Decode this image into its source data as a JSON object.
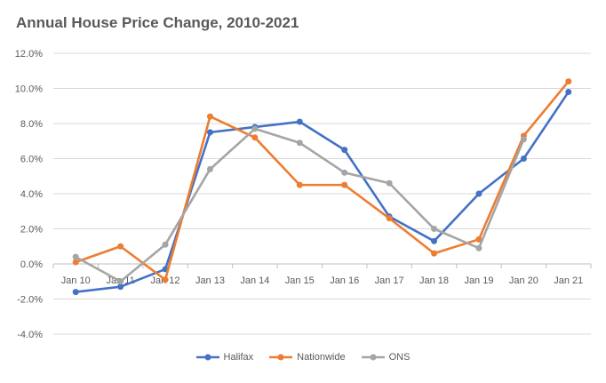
{
  "chart_data": {
    "type": "line",
    "title": "Annual House Price Change, 2010-2021",
    "xlabel": "",
    "ylabel": "",
    "categories": [
      "Jan 10",
      "Jan 11",
      "Jan 12",
      "Jan 13",
      "Jan 14",
      "Jan 15",
      "Jan 16",
      "Jan 17",
      "Jan 18",
      "Jan 19",
      "Jan 20",
      "Jan 21"
    ],
    "ylim": [
      -4,
      12
    ],
    "yticks": [
      "-4.0%",
      "-2.0%",
      "0.0%",
      "2.0%",
      "4.0%",
      "6.0%",
      "8.0%",
      "10.0%",
      "12.0%"
    ],
    "grid": true,
    "legend_position": "bottom",
    "series": [
      {
        "name": "Halifax",
        "color": "#4472C4",
        "values": [
          -1.6,
          -1.3,
          -0.3,
          7.5,
          7.8,
          8.1,
          6.5,
          2.7,
          1.3,
          4.0,
          6.0,
          9.8
        ]
      },
      {
        "name": "Nationwide",
        "color": "#ED7D31",
        "values": [
          0.1,
          1.0,
          -0.9,
          8.4,
          7.2,
          4.5,
          4.5,
          2.6,
          0.6,
          1.4,
          7.3,
          10.4
        ]
      },
      {
        "name": "ONS",
        "color": "#A5A5A5",
        "values": [
          0.4,
          -1.0,
          1.1,
          5.4,
          7.7,
          6.9,
          5.2,
          4.6,
          2.0,
          0.9,
          7.1,
          null
        ]
      }
    ]
  }
}
